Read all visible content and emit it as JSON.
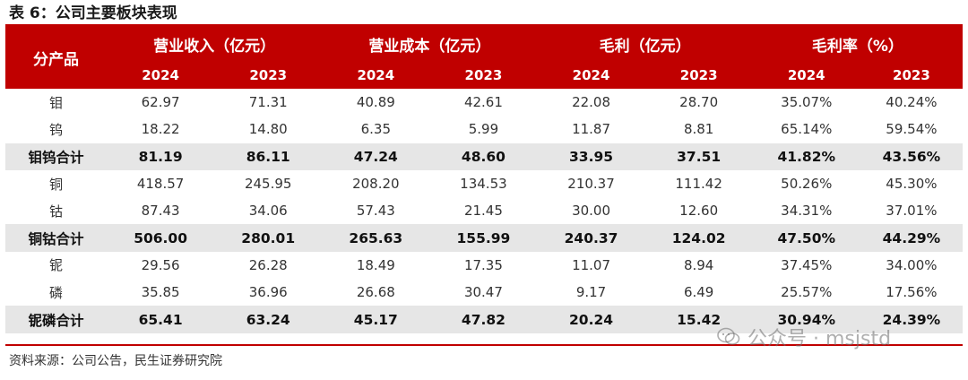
{
  "title": "表 6：公司主要板块表现",
  "table": {
    "corner_header": "分产品",
    "group_headers": [
      "营业收入（亿元）",
      "营业成本（亿元）",
      "毛利（亿元）",
      "毛利率（%）"
    ],
    "year_headers": [
      "2024",
      "2023",
      "2024",
      "2023",
      "2024",
      "2023",
      "2024",
      "2023"
    ],
    "rows": [
      {
        "label": "钼",
        "subtotal": false,
        "values": [
          "62.97",
          "71.31",
          "40.89",
          "42.61",
          "22.08",
          "28.70",
          "35.07%",
          "40.24%"
        ]
      },
      {
        "label": "钨",
        "subtotal": false,
        "values": [
          "18.22",
          "14.80",
          "6.35",
          "5.99",
          "11.87",
          "8.81",
          "65.14%",
          "59.54%"
        ]
      },
      {
        "label": "钼钨合计",
        "subtotal": true,
        "values": [
          "81.19",
          "86.11",
          "47.24",
          "48.60",
          "33.95",
          "37.51",
          "41.82%",
          "43.56%"
        ]
      },
      {
        "label": "铜",
        "subtotal": false,
        "values": [
          "418.57",
          "245.95",
          "208.20",
          "134.53",
          "210.37",
          "111.42",
          "50.26%",
          "45.30%"
        ]
      },
      {
        "label": "钴",
        "subtotal": false,
        "values": [
          "87.43",
          "34.06",
          "57.43",
          "21.45",
          "30.00",
          "12.60",
          "34.31%",
          "37.01%"
        ]
      },
      {
        "label": "铜钴合计",
        "subtotal": true,
        "values": [
          "506.00",
          "280.01",
          "265.63",
          "155.99",
          "240.37",
          "124.02",
          "47.50%",
          "44.29%"
        ]
      },
      {
        "label": "铌",
        "subtotal": false,
        "values": [
          "29.56",
          "26.28",
          "18.49",
          "17.35",
          "11.07",
          "8.94",
          "37.45%",
          "34.00%"
        ]
      },
      {
        "label": "磷",
        "subtotal": false,
        "values": [
          "35.85",
          "36.96",
          "26.68",
          "30.47",
          "9.17",
          "6.49",
          "25.57%",
          "17.56%"
        ]
      },
      {
        "label": "铌磷合计",
        "subtotal": true,
        "values": [
          "65.41",
          "63.24",
          "45.17",
          "47.82",
          "20.24",
          "15.42",
          "30.94%",
          "24.39%"
        ]
      }
    ]
  },
  "source": "资料来源：公司公告，民生证券研究院",
  "watermark": "公众号 · msjstd",
  "colors": {
    "header_bg": "#c00000",
    "subtotal_bg": "#e6e6e6"
  }
}
